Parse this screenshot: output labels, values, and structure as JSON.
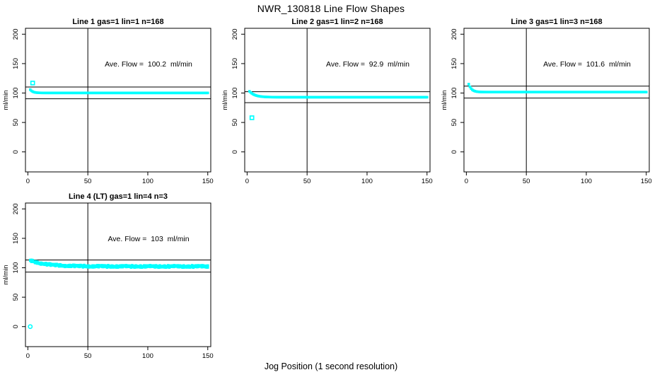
{
  "header": {
    "title": "NWR_130818  Line Flow Shapes"
  },
  "footer": {
    "xlabel": "Jog Position (1 second resolution)"
  },
  "chart_data": {
    "type": "scatter",
    "title": "NWR_130818  Line Flow Shapes",
    "xlabel": "Jog Position (1 second resolution)",
    "ylabel": "ml/min",
    "x_ticks": [
      0,
      50,
      100,
      150
    ],
    "y_ticks": [
      0,
      50,
      100,
      150,
      200
    ],
    "xlim": [
      -2,
      152.5
    ],
    "ylim": [
      -34,
      210
    ],
    "grid": false,
    "legend": "none",
    "marker_color": "#00ffff",
    "line_color": "#000000",
    "background": "#ffffff",
    "panels": [
      {
        "title": "Line 1 gas=1 lin=1 n=168",
        "annotation": "Ave. Flow =  100.2  ml/min",
        "ave_flow_ml_min": 100.2,
        "n": 168,
        "ref_hlines": [
          110.2,
          90.2
        ],
        "ref_vline": 50,
        "curve": {
          "x_start": 2,
          "x_end": 150,
          "y_settle": 100.2,
          "amplitude": 5.5,
          "tau": 2.2,
          "jitter": 0,
          "traces": 1
        },
        "special_points": [
          {
            "x": 4,
            "y": 117,
            "shape": "square"
          }
        ]
      },
      {
        "title": "Line 2 gas=1 lin=2 n=168",
        "annotation": "Ave. Flow =  92.9  ml/min",
        "ave_flow_ml_min": 92.9,
        "n": 168,
        "ref_hlines": [
          102.2,
          83.6
        ],
        "ref_vline": 50,
        "curve": {
          "x_start": 2,
          "x_end": 150,
          "y_settle": 92.9,
          "amplitude": 10,
          "tau": 4.5,
          "jitter": 0,
          "traces": 1
        },
        "special_points": [
          {
            "x": 4,
            "y": 58,
            "shape": "square"
          }
        ]
      },
      {
        "title": "Line 3 gas=1 lin=3 n=168",
        "annotation": "Ave. Flow =  101.6  ml/min",
        "ave_flow_ml_min": 101.6,
        "n": 168,
        "ref_hlines": [
          111.8,
          91.4
        ],
        "ref_vline": 50,
        "curve": {
          "x_start": 2,
          "x_end": 150,
          "y_settle": 101.6,
          "amplitude": 13.5,
          "tau": 2.4,
          "jitter": 0,
          "traces": 1
        },
        "special_points": []
      },
      {
        "title": "Line 4 (LT) gas=1 lin=4 n=3",
        "annotation": "Ave. Flow =  103  ml/min",
        "ave_flow_ml_min": 103,
        "n": 3,
        "ref_hlines": [
          113.3,
          92.7
        ],
        "ref_vline": 50,
        "curve": {
          "x_start": 2,
          "x_end": 150,
          "y_settle": 102.3,
          "amplitude": 10,
          "tau": 14,
          "jitter": 1.3,
          "traces": 3
        },
        "special_points": [
          {
            "x": 2,
            "y": 0,
            "shape": "circle"
          }
        ]
      }
    ]
  }
}
